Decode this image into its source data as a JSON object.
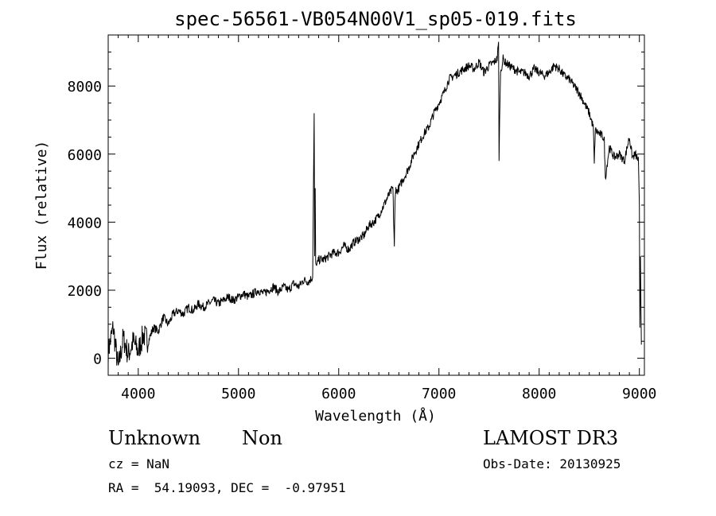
{
  "chart_data": {
    "type": "line",
    "title": "spec-56561-VB054N00V1_sp05-019.fits",
    "xlabel": "Wavelength (Å)",
    "ylabel": "Flux (relative)",
    "xlim": [
      3700,
      9050
    ],
    "ylim": [
      -500,
      9500
    ],
    "xticks": [
      4000,
      5000,
      6000,
      7000,
      8000,
      9000
    ],
    "xtick_labels": [
      "4000",
      "5000",
      "6000",
      "7000",
      "8000",
      "9000"
    ],
    "yticks": [
      0,
      2000,
      4000,
      6000,
      8000
    ],
    "ytick_labels": [
      "0",
      "2000",
      "4000",
      "6000",
      "8000"
    ],
    "color": "#000000",
    "series": [
      {
        "name": "flux",
        "x": [
          3700,
          3750,
          3800,
          3850,
          3900,
          3950,
          4000,
          4050,
          4100,
          4150,
          4200,
          4250,
          4300,
          4350,
          4400,
          4450,
          4500,
          4550,
          4600,
          4650,
          4700,
          4750,
          4800,
          4850,
          4900,
          4950,
          5000,
          5050,
          5100,
          5150,
          5200,
          5250,
          5300,
          5350,
          5400,
          5450,
          5500,
          5550,
          5600,
          5650,
          5700,
          5740,
          5755,
          5760,
          5765,
          5770,
          5780,
          5800,
          5850,
          5900,
          5950,
          6000,
          6050,
          6100,
          6150,
          6200,
          6250,
          6300,
          6350,
          6400,
          6450,
          6500,
          6540,
          6555,
          6562,
          6570,
          6580,
          6600,
          6650,
          6700,
          6750,
          6800,
          6850,
          6900,
          6950,
          7000,
          7050,
          7100,
          7150,
          7200,
          7250,
          7300,
          7350,
          7400,
          7450,
          7500,
          7550,
          7580,
          7595,
          7600,
          7605,
          7615,
          7640,
          7660,
          7700,
          7750,
          7800,
          7850,
          7900,
          7950,
          8000,
          8050,
          8100,
          8150,
          8200,
          8250,
          8300,
          8350,
          8400,
          8450,
          8500,
          8540,
          8550,
          8560,
          8600,
          8640,
          8650,
          8660,
          8700,
          8750,
          8800,
          8850,
          8900,
          8930,
          8960,
          8990,
          9000,
          9005,
          9010,
          9020
        ],
        "y": [
          200,
          900,
          -300,
          600,
          100,
          500,
          200,
          700,
          500,
          900,
          800,
          1200,
          1000,
          1300,
          1400,
          1300,
          1500,
          1400,
          1600,
          1500,
          1600,
          1700,
          1600,
          1700,
          1800,
          1700,
          1800,
          1900,
          1800,
          1900,
          2000,
          1900,
          2000,
          2100,
          1950,
          2100,
          2000,
          2200,
          2100,
          2300,
          2250,
          2400,
          7200,
          3000,
          5000,
          2800,
          2700,
          2900,
          2900,
          3000,
          3100,
          3100,
          3300,
          3200,
          3400,
          3500,
          3600,
          3900,
          4000,
          4200,
          4500,
          4800,
          5000,
          3300,
          4600,
          5000,
          4900,
          5000,
          5300,
          5600,
          6000,
          6300,
          6600,
          6800,
          7200,
          7500,
          7800,
          8200,
          8300,
          8400,
          8500,
          8600,
          8500,
          8700,
          8400,
          8600,
          8700,
          8800,
          9300,
          5800,
          7000,
          8400,
          8800,
          8700,
          8600,
          8500,
          8400,
          8400,
          8300,
          8500,
          8400,
          8300,
          8400,
          8600,
          8500,
          8300,
          8200,
          8000,
          7800,
          7500,
          7200,
          6800,
          5700,
          6700,
          6600,
          6500,
          6400,
          5300,
          6200,
          5900,
          6000,
          5800,
          6500,
          5900,
          6000,
          5800,
          4500,
          900,
          3000,
          400
        ]
      }
    ]
  },
  "info": {
    "object_class": "Unknown",
    "subclass": "Non",
    "survey": "LAMOST DR3",
    "cz": "cz = NaN",
    "obs_date": "Obs-Date: 20130925",
    "coords": "RA =  54.19093, DEC =  -0.97951"
  }
}
